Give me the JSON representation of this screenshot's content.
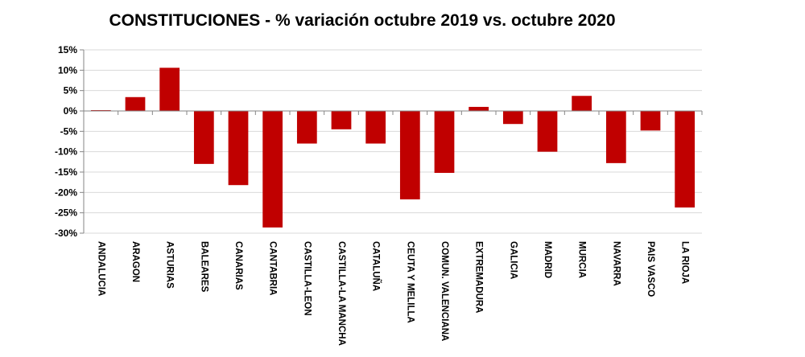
{
  "chart_data": {
    "type": "bar",
    "title": "CONSTITUCIONES - % variación octubre 2019 vs. octubre 2020",
    "categories": [
      "ANDALUCIA",
      "ARAGON",
      "ASTURIAS",
      "BALEARES",
      "CANARIAS",
      "CANTABRIA",
      "CASTILLA-LEON",
      "CASTILLA-LA MANCHA",
      "CATALUÑA",
      "CEUTA Y MELILLA",
      "COMUN. VALENCIANA",
      "EXTREMADURA",
      "GALICIA",
      "MADRID",
      "MURCIA",
      "NAVARRA",
      "PAIS VASCO",
      "LA RIOJA"
    ],
    "values": [
      0.2,
      3.4,
      10.6,
      -13.0,
      -18.2,
      -28.6,
      -8.0,
      -4.5,
      -8.0,
      -21.7,
      -15.2,
      1.0,
      -3.2,
      -10.0,
      3.7,
      -12.8,
      -4.8,
      -23.7
    ],
    "yticks": [
      "15%",
      "10%",
      "5%",
      "0%",
      "-5%",
      "-10%",
      "-15%",
      "-20%",
      "-25%",
      "-30%"
    ],
    "ylim": [
      -30,
      15
    ],
    "xlabel": "",
    "ylabel": "",
    "grid": true,
    "bar_color": "#c00000"
  }
}
